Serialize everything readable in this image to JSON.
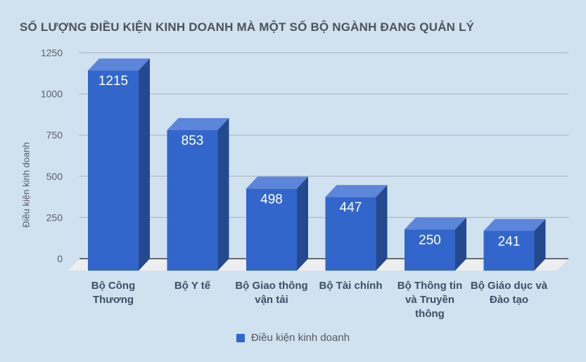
{
  "title": "SỐ LƯỢNG ĐIỀU KIỆN KINH DOANH MÀ MỘT SỐ BỘ NGÀNH ĐANG QUẢN LÝ",
  "legend": {
    "label": "Điều kiện kinh doanh"
  },
  "chart_data": {
    "type": "bar",
    "style": "3d-column",
    "title": "SỐ LƯỢNG ĐIỀU KIỆN KINH DOANH MÀ MỘT SỐ BỘ NGÀNH ĐANG QUẢN LÝ",
    "categories": [
      "Bộ Công\nThương",
      "Bộ Y tế",
      "Bộ Giao thông\nvận tải",
      "Bộ Tài chính",
      "Bộ Thông tin\nvà Truyền\nthông",
      "Bộ Giáo dục và\nĐào tạo"
    ],
    "values": [
      1215,
      853,
      498,
      447,
      250,
      241
    ],
    "series": [
      {
        "name": "Điều kiện kinh doanh",
        "values": [
          1215,
          853,
          498,
          447,
          250,
          241
        ]
      }
    ],
    "xlabel": "",
    "ylabel": "Điều kiện kinh doanh",
    "yticks": [
      0,
      250,
      500,
      750,
      1000,
      1250
    ],
    "ylim": [
      0,
      1250
    ],
    "grid": true,
    "legend_position": "bottom",
    "legend_label": "Điều kiện kinh doanh",
    "colors": {
      "bar_front": "#3266cb",
      "bar_top": "#5d85d9",
      "bar_side": "#25498f",
      "background": "#d0e1f0",
      "floor": "#eceeef",
      "gridline": "#a7b3c0",
      "axis_line": "#222222",
      "value_label": "#ffffff",
      "tick_label": "#5c6167",
      "category_label": "#3b5166",
      "title": "#4d5359",
      "legend_text": "#54585e"
    }
  }
}
